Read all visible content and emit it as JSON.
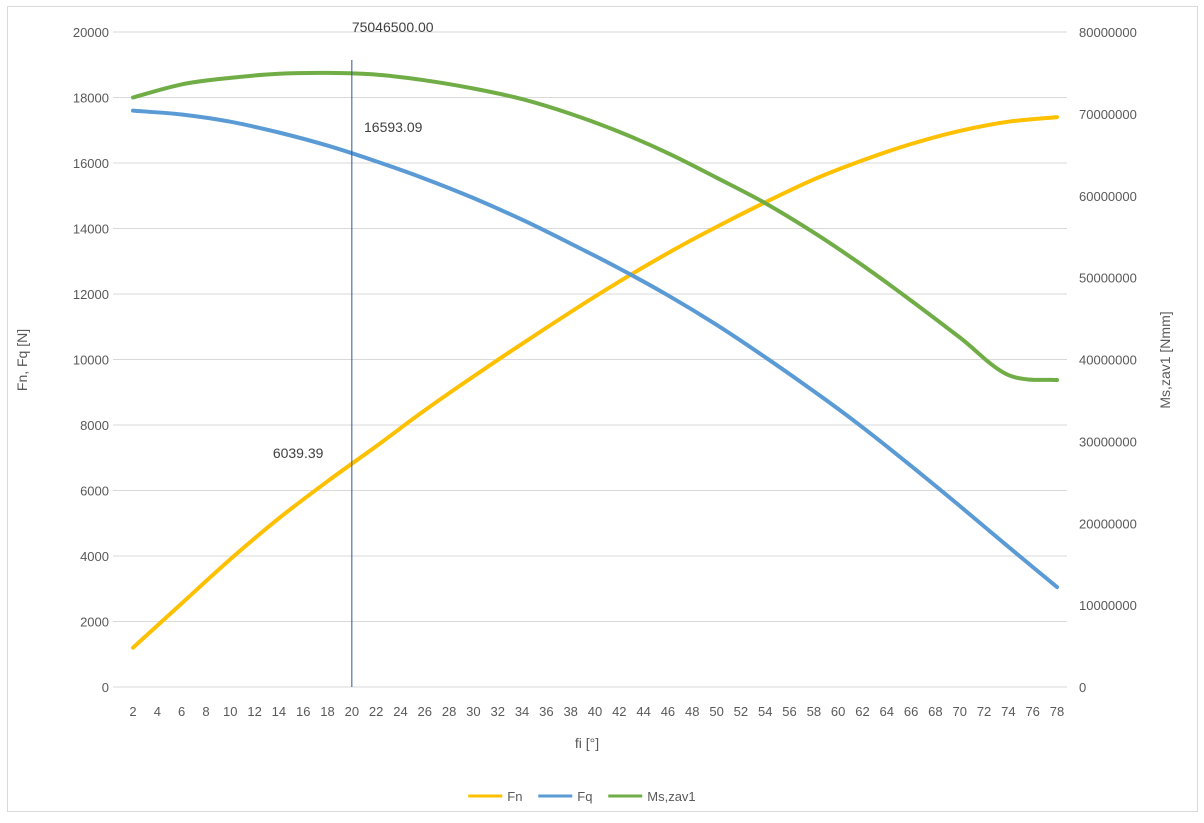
{
  "chart_data": {
    "type": "line",
    "title": "",
    "xlabel": "fi [°]",
    "ylabel": "Fn, Fq [N]",
    "ylabel_right": "Ms,zav1 [Nmm]",
    "xlim": [
      2,
      78
    ],
    "ylim": [
      0,
      20000
    ],
    "ylim_right": [
      0,
      80000000
    ],
    "x_ticks": [
      2,
      4,
      6,
      8,
      10,
      12,
      14,
      16,
      18,
      20,
      22,
      24,
      26,
      28,
      30,
      32,
      34,
      36,
      38,
      40,
      42,
      44,
      46,
      48,
      50,
      52,
      54,
      56,
      58,
      60,
      62,
      64,
      66,
      68,
      70,
      72,
      74,
      76,
      78
    ],
    "y_ticks": [
      0,
      2000,
      4000,
      6000,
      8000,
      10000,
      12000,
      14000,
      16000,
      18000,
      20000
    ],
    "y_ticks_right": [
      0,
      10000000,
      20000000,
      30000000,
      40000000,
      50000000,
      60000000,
      70000000,
      80000000
    ],
    "grid": true,
    "legend_position": "bottom",
    "series": [
      {
        "name": "Fn",
        "axis": "left",
        "color": "#ffc000",
        "x": [
          2,
          6,
          10,
          14,
          18,
          22,
          26,
          30,
          34,
          38,
          42,
          46,
          50,
          54,
          58,
          62,
          66,
          70,
          74,
          78
        ],
        "values": [
          1200,
          2550,
          3900,
          5150,
          6280,
          7350,
          8450,
          9480,
          10480,
          11450,
          12380,
          13250,
          14050,
          14800,
          15500,
          16080,
          16580,
          16980,
          17260,
          17400
        ]
      },
      {
        "name": "Fq",
        "axis": "left",
        "color": "#5b9bd5",
        "x": [
          2,
          6,
          10,
          14,
          18,
          22,
          26,
          30,
          34,
          38,
          42,
          46,
          50,
          54,
          58,
          62,
          66,
          70,
          74,
          78
        ],
        "values": [
          17600,
          17480,
          17260,
          16930,
          16530,
          16050,
          15520,
          14930,
          14270,
          13540,
          12780,
          11960,
          11060,
          10070,
          9030,
          7930,
          6750,
          5530,
          4280,
          3050
        ]
      },
      {
        "name": "Ms,zav1",
        "axis": "right",
        "color": "#70ad47",
        "x": [
          2,
          6,
          10,
          14,
          18,
          22,
          26,
          30,
          34,
          38,
          42,
          46,
          50,
          54,
          58,
          62,
          66,
          70,
          74,
          78
        ],
        "values": [
          72000000,
          73600000,
          74400000,
          74900000,
          75000000,
          74800000,
          74100000,
          73100000,
          71800000,
          70000000,
          67800000,
          65200000,
          62200000,
          59100000,
          55500000,
          51500000,
          47200000,
          42700000,
          38100000,
          37500000
        ]
      }
    ],
    "vertical_marker": {
      "x": 20
    },
    "annotations": [
      {
        "text": "75046500.00",
        "x": 20,
        "y": 20000,
        "axis": "left"
      },
      {
        "text": "16593.09",
        "x": 21,
        "y": 16950,
        "axis": "left"
      },
      {
        "text": "6039.39",
        "x": 13.5,
        "y": 7000,
        "axis": "left"
      }
    ]
  }
}
